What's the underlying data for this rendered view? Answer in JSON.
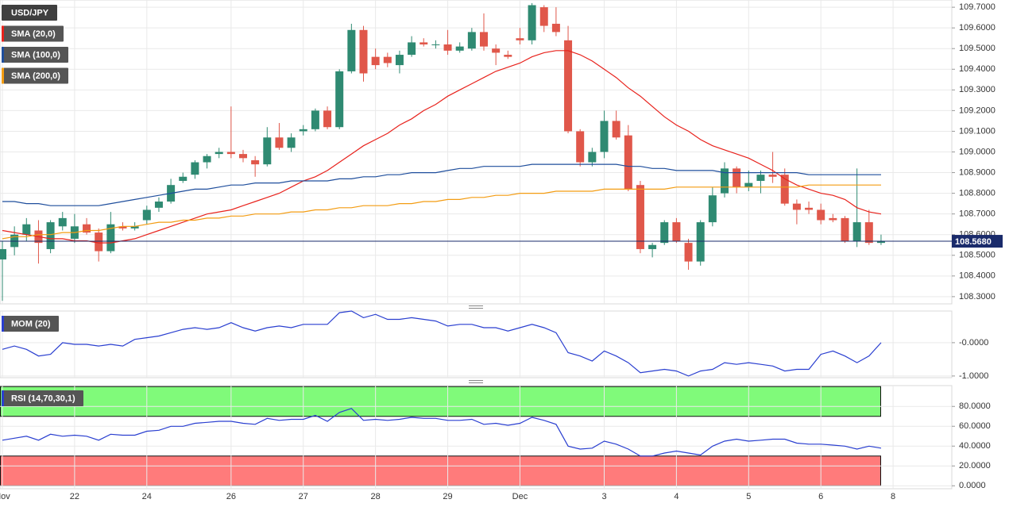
{
  "chart_data": [
    {
      "type": "candlestick",
      "title": "USD/JPY",
      "open": [
        108.48,
        108.54,
        108.6,
        108.62,
        108.53,
        108.64,
        108.58,
        108.65,
        108.61,
        108.52,
        108.64,
        108.63,
        108.67,
        108.73,
        108.76,
        108.86,
        108.89,
        108.95,
        108.99,
        109.0,
        108.99,
        108.96,
        108.94,
        109.07,
        109.02,
        109.1,
        109.11,
        109.2,
        109.12,
        109.39,
        109.59,
        109.46,
        109.46,
        109.42,
        109.47,
        109.53,
        109.52,
        109.52,
        109.49,
        109.5,
        109.58,
        109.5,
        109.47,
        109.55,
        109.54,
        109.7,
        109.62,
        109.54,
        109.1,
        108.95,
        109.0,
        109.15,
        109.08,
        108.84,
        108.53,
        108.56,
        108.66,
        108.56,
        108.47,
        108.66,
        108.8,
        108.92,
        108.83,
        108.86,
        108.89,
        108.89,
        108.75,
        108.73,
        108.72,
        108.68,
        108.68,
        108.57,
        108.66,
        108.56,
        null
      ],
      "high": [
        108.57,
        108.64,
        108.68,
        108.67,
        108.67,
        108.71,
        108.7,
        108.68,
        108.63,
        108.71,
        108.66,
        108.66,
        108.74,
        108.78,
        108.87,
        108.9,
        108.96,
        108.99,
        109.02,
        109.22,
        109.01,
        108.98,
        109.12,
        109.14,
        109.09,
        109.13,
        109.21,
        109.22,
        109.4,
        109.62,
        109.61,
        109.5,
        109.48,
        109.49,
        109.56,
        109.55,
        109.54,
        109.59,
        109.53,
        109.6,
        109.67,
        109.52,
        109.49,
        109.6,
        109.72,
        109.71,
        109.7,
        109.61,
        109.11,
        109.02,
        109.2,
        109.2,
        109.13,
        108.86,
        108.56,
        108.67,
        108.68,
        108.58,
        108.67,
        108.83,
        108.95,
        108.93,
        108.91,
        108.91,
        109.0,
        108.92,
        108.77,
        108.76,
        108.75,
        108.7,
        108.69,
        108.92,
        108.72,
        108.6,
        null
      ],
      "low": [
        108.28,
        108.5,
        108.57,
        108.46,
        108.51,
        108.62,
        108.56,
        108.6,
        108.47,
        108.51,
        108.62,
        108.62,
        108.65,
        108.71,
        108.75,
        108.85,
        108.87,
        108.92,
        108.97,
        108.97,
        108.95,
        108.88,
        108.93,
        109.01,
        109.0,
        109.08,
        109.1,
        109.11,
        109.11,
        109.38,
        109.34,
        109.4,
        109.41,
        109.38,
        109.46,
        109.51,
        109.5,
        109.47,
        109.48,
        109.49,
        109.49,
        109.42,
        109.45,
        109.52,
        109.52,
        109.58,
        109.56,
        109.09,
        108.93,
        108.93,
        108.97,
        109.06,
        108.81,
        108.51,
        108.49,
        108.55,
        108.56,
        108.43,
        108.45,
        108.64,
        108.78,
        108.8,
        108.81,
        108.8,
        108.85,
        108.74,
        108.65,
        108.7,
        108.65,
        108.66,
        108.56,
        108.54,
        108.55,
        108.55,
        null
      ],
      "close": [
        108.53,
        108.6,
        108.65,
        108.56,
        108.66,
        108.68,
        108.64,
        108.61,
        108.52,
        108.65,
        108.63,
        108.64,
        108.72,
        108.76,
        108.84,
        108.88,
        108.95,
        108.98,
        109.0,
        108.99,
        108.97,
        108.94,
        109.07,
        109.02,
        109.07,
        109.11,
        109.2,
        109.12,
        109.39,
        109.59,
        109.38,
        109.42,
        109.43,
        109.47,
        109.53,
        109.52,
        109.52,
        109.49,
        109.51,
        109.58,
        109.51,
        109.48,
        109.46,
        109.54,
        109.71,
        109.61,
        109.58,
        109.1,
        108.95,
        109.0,
        109.15,
        109.07,
        108.82,
        108.53,
        108.55,
        108.66,
        108.57,
        108.47,
        108.66,
        108.79,
        108.92,
        108.83,
        108.85,
        108.89,
        108.88,
        108.75,
        108.72,
        108.72,
        108.67,
        108.67,
        108.57,
        108.66,
        108.56,
        108.568,
        null
      ],
      "up_color": "#2f8a72",
      "down_color": "#e0574a",
      "series": [
        {
          "name": "SMA (20,0)",
          "color": "#e8221c",
          "values": [
            108.62,
            108.61,
            108.6,
            108.59,
            108.58,
            108.58,
            108.57,
            108.57,
            108.56,
            108.56,
            108.57,
            108.58,
            108.6,
            108.62,
            108.64,
            108.66,
            108.68,
            108.7,
            108.71,
            108.72,
            108.74,
            108.76,
            108.78,
            108.8,
            108.83,
            108.86,
            108.88,
            108.91,
            108.95,
            108.99,
            109.03,
            109.06,
            109.09,
            109.13,
            109.16,
            109.2,
            109.23,
            109.27,
            109.3,
            109.33,
            109.36,
            109.39,
            109.41,
            109.43,
            109.46,
            109.48,
            109.49,
            109.49,
            109.47,
            109.44,
            109.4,
            109.36,
            109.31,
            109.27,
            109.22,
            109.17,
            109.13,
            109.1,
            109.06,
            109.03,
            109.01,
            108.99,
            108.97,
            108.94,
            108.91,
            108.87,
            108.84,
            108.82,
            108.8,
            108.79,
            108.77,
            108.73,
            108.71,
            108.7,
            null
          ]
        },
        {
          "name": "SMA (100,0)",
          "color": "#1f4e9c",
          "values": [
            108.76,
            108.76,
            108.75,
            108.75,
            108.74,
            108.74,
            108.74,
            108.74,
            108.74,
            108.75,
            108.76,
            108.77,
            108.78,
            108.79,
            108.8,
            108.81,
            108.82,
            108.82,
            108.83,
            108.84,
            108.84,
            108.85,
            108.85,
            108.85,
            108.86,
            108.86,
            108.86,
            108.86,
            108.87,
            108.87,
            108.88,
            108.88,
            108.89,
            108.89,
            108.9,
            108.9,
            108.9,
            108.91,
            108.92,
            108.92,
            108.93,
            108.93,
            108.93,
            108.93,
            108.94,
            108.94,
            108.94,
            108.94,
            108.94,
            108.94,
            108.94,
            108.94,
            108.93,
            108.93,
            108.92,
            108.92,
            108.91,
            108.91,
            108.91,
            108.91,
            108.9,
            108.9,
            108.9,
            108.9,
            108.9,
            108.9,
            108.9,
            108.89,
            108.89,
            108.89,
            108.89,
            108.89,
            108.89,
            108.89,
            null
          ]
        },
        {
          "name": "SMA (200,0)",
          "color": "#f39c12",
          "values": [
            108.58,
            108.59,
            108.59,
            108.6,
            108.6,
            108.61,
            108.61,
            108.62,
            108.62,
            108.63,
            108.64,
            108.64,
            108.65,
            108.66,
            108.66,
            108.67,
            108.67,
            108.68,
            108.68,
            108.69,
            108.69,
            108.7,
            108.7,
            108.7,
            108.71,
            108.71,
            108.72,
            108.72,
            108.73,
            108.73,
            108.74,
            108.74,
            108.74,
            108.75,
            108.75,
            108.76,
            108.76,
            108.77,
            108.77,
            108.78,
            108.78,
            108.79,
            108.79,
            108.8,
            108.8,
            108.8,
            108.81,
            108.81,
            108.81,
            108.81,
            108.82,
            108.82,
            108.82,
            108.82,
            108.82,
            108.82,
            108.83,
            108.83,
            108.83,
            108.83,
            108.83,
            108.83,
            108.83,
            108.83,
            108.83,
            108.83,
            108.83,
            108.84,
            108.84,
            108.84,
            108.84,
            108.84,
            108.84,
            108.84,
            null
          ]
        }
      ],
      "last_price": {
        "value": 108.568,
        "label": "108.5680",
        "color": "#1a2b6b"
      },
      "ylim": [
        108.265,
        109.735
      ],
      "yticks": [
        {
          "value": 108.3,
          "label": "108.3000"
        },
        {
          "value": 108.4,
          "label": "108.4000"
        },
        {
          "value": 108.5,
          "label": "108.5000"
        },
        {
          "value": 108.6,
          "label": "108.6000"
        },
        {
          "value": 108.7,
          "label": "108.7000"
        },
        {
          "value": 108.8,
          "label": "108.8000"
        },
        {
          "value": 108.9,
          "label": "108.9000"
        },
        {
          "value": 109.0,
          "label": "109.0000"
        },
        {
          "value": 109.1,
          "label": "109.1000"
        },
        {
          "value": 109.2,
          "label": "109.2000"
        },
        {
          "value": 109.3,
          "label": "109.3000"
        },
        {
          "value": 109.4,
          "label": "109.4000"
        },
        {
          "value": 109.5,
          "label": "109.5000"
        },
        {
          "value": 109.6,
          "label": "109.6000"
        },
        {
          "value": 109.7,
          "label": "109.7000"
        }
      ],
      "grid": true
    },
    {
      "type": "line",
      "series": [
        {
          "name": "MOM (20)",
          "color": "#2a3fd0",
          "values": [
            -0.2,
            -0.1,
            -0.2,
            -0.4,
            -0.35,
            0.0,
            -0.05,
            -0.05,
            -0.1,
            -0.05,
            -0.1,
            0.1,
            0.15,
            0.2,
            0.3,
            0.4,
            0.45,
            0.4,
            0.45,
            0.6,
            0.45,
            0.35,
            0.45,
            0.5,
            0.45,
            0.55,
            0.55,
            0.55,
            0.9,
            0.95,
            0.75,
            0.85,
            0.7,
            0.7,
            0.75,
            0.7,
            0.65,
            0.5,
            0.55,
            0.55,
            0.45,
            0.45,
            0.35,
            0.45,
            0.55,
            0.45,
            0.3,
            -0.3,
            -0.4,
            -0.55,
            -0.25,
            -0.4,
            -0.6,
            -0.9,
            -0.85,
            -0.8,
            -0.85,
            -1.0,
            -0.85,
            -0.8,
            -0.6,
            -0.65,
            -0.6,
            -0.65,
            -0.7,
            -0.85,
            -0.8,
            -0.8,
            -0.35,
            -0.25,
            -0.4,
            -0.6,
            -0.4,
            0.0,
            null
          ]
        }
      ],
      "ylim": [
        -1.05,
        0.95
      ],
      "yticks": [
        {
          "value": 0,
          "label": "-0.0000"
        },
        {
          "value": -1,
          "label": "-1.0000"
        }
      ],
      "grid": true
    },
    {
      "type": "line",
      "series": [
        {
          "name": "RSI (14,70,30,1)",
          "color": "#2a3fd0",
          "values": [
            46,
            48,
            50,
            46,
            52,
            50,
            51,
            50,
            46,
            52,
            51,
            51,
            55,
            56,
            60,
            60,
            63,
            64,
            65,
            65,
            63,
            62,
            68,
            66,
            67,
            67,
            71,
            65,
            74,
            78,
            66,
            67,
            66,
            67,
            69,
            68,
            68,
            66,
            66,
            67,
            62,
            63,
            61,
            63,
            69,
            66,
            62,
            40,
            37,
            38,
            45,
            42,
            37,
            30,
            30,
            33,
            35,
            33,
            31,
            40,
            45,
            47,
            45,
            46,
            47,
            47,
            43,
            42,
            42,
            41,
            40,
            37,
            40,
            38,
            null
          ]
        }
      ],
      "bands": [
        {
          "from": 70,
          "to": 100,
          "color": "#80fa7a"
        },
        {
          "from": 0,
          "to": 30,
          "color": "#ff7b7b"
        }
      ],
      "ylim": [
        -3,
        101
      ],
      "yticks": [
        {
          "value": 0,
          "label": "0.0000"
        },
        {
          "value": 20,
          "label": "20.0000"
        },
        {
          "value": 40,
          "label": "40.0000"
        },
        {
          "value": 60,
          "label": "60.0000"
        },
        {
          "value": 80,
          "label": "80.0000"
        }
      ],
      "categories": [
        "Nov",
        null,
        null,
        null,
        null,
        null,
        "22",
        null,
        null,
        null,
        null,
        null,
        "24",
        null,
        null,
        null,
        null,
        null,
        null,
        "26",
        null,
        null,
        null,
        null,
        null,
        "27",
        null,
        null,
        null,
        null,
        null,
        "28",
        null,
        null,
        null,
        null,
        null,
        "29",
        null,
        null,
        null,
        null,
        null,
        "Dec",
        null,
        null,
        null,
        null,
        null,
        null,
        "3",
        null,
        null,
        null,
        null,
        null,
        "4",
        null,
        null,
        null,
        null,
        null,
        "5",
        null,
        null,
        null,
        null,
        null,
        "6",
        null,
        null,
        null,
        null,
        null,
        "8"
      ],
      "grid": true
    }
  ]
}
